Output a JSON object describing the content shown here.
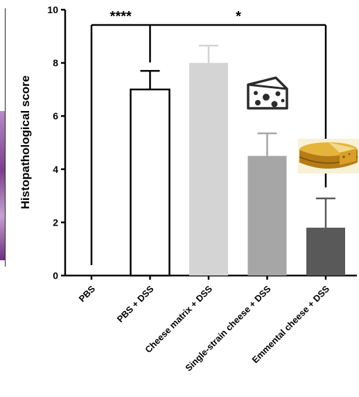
{
  "chart_data": {
    "type": "bar",
    "title": "",
    "xlabel": "",
    "ylabel": "Histopathological score",
    "ylim": [
      0,
      10
    ],
    "yticks": [
      0,
      2,
      4,
      6,
      8,
      10
    ],
    "grid": false,
    "categories": [
      "PBS",
      "PBS + DSS",
      "Cheese matrix + DSS",
      "Single-strain cheese + DSS",
      "Emmental cheese + DSS"
    ],
    "series": [
      {
        "values": [
          0,
          7.0,
          8.0,
          4.5,
          1.8
        ],
        "error_upper": [
          0,
          0.7,
          0.65,
          0.85,
          1.1
        ]
      }
    ],
    "bar_colors": [
      "#ffffff",
      "#ffffff",
      "#d4d4d4",
      "#a6a6a6",
      "#595959"
    ],
    "error_colors": [
      "#000000",
      "#000000",
      "#d4d4d4",
      "#a6a6a6",
      "#595959"
    ],
    "significance": [
      {
        "label": "****",
        "from": "PBS",
        "to": "PBS + DSS"
      },
      {
        "label": "*",
        "from": "PBS",
        "to": "Emmental cheese + DSS"
      }
    ]
  },
  "icons": {
    "cheese": "cheese-wedge-icon",
    "emmental": "emmental-wheel-photo"
  },
  "colors": {
    "axis": "#000000",
    "histology_purple": "#7a3f8e"
  }
}
